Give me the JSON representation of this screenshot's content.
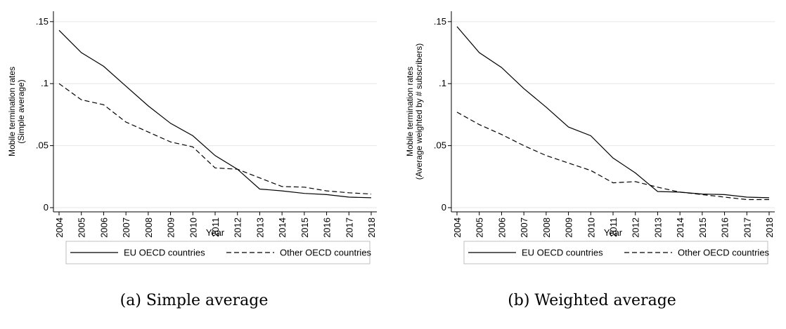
{
  "chart_data": [
    {
      "type": "line",
      "xlabel": "Year",
      "ylabel_lines": [
        "Mobile termination rates",
        "(Simple average)"
      ],
      "x": [
        2004,
        2005,
        2006,
        2007,
        2008,
        2009,
        2010,
        2011,
        2012,
        2013,
        2014,
        2015,
        2016,
        2017,
        2018
      ],
      "yticks": [
        0,
        0.05,
        0.1,
        0.15
      ],
      "ytick_labels": [
        "0",
        ".05",
        ".1",
        ".15"
      ],
      "ylim": [
        0,
        0.155
      ],
      "grid": true,
      "legend_placement": "bottom",
      "series": [
        {
          "name": "EU OECD countries",
          "style": "solid",
          "values": [
            0.143,
            0.125,
            0.114,
            0.098,
            0.082,
            0.068,
            0.058,
            0.042,
            0.031,
            0.015,
            0.0135,
            0.0115,
            0.0105,
            0.0085,
            0.008
          ]
        },
        {
          "name": "Other OECD countries",
          "style": "dashed",
          "values": [
            0.1,
            0.087,
            0.083,
            0.069,
            0.061,
            0.053,
            0.049,
            0.032,
            0.031,
            0.024,
            0.017,
            0.0165,
            0.0135,
            0.012,
            0.011
          ]
        }
      ]
    },
    {
      "type": "line",
      "xlabel": "Year",
      "ylabel_lines": [
        "Mobile termination rates",
        "(Average weighted by # subscribers)"
      ],
      "x": [
        2004,
        2005,
        2006,
        2007,
        2008,
        2009,
        2010,
        2011,
        2012,
        2013,
        2014,
        2015,
        2016,
        2017,
        2018
      ],
      "yticks": [
        0,
        0.05,
        0.1,
        0.15
      ],
      "ytick_labels": [
        "0",
        ".05",
        ".1",
        ".15"
      ],
      "ylim": [
        0,
        0.155
      ],
      "grid": true,
      "legend_placement": "bottom",
      "series": [
        {
          "name": "EU OECD countries",
          "style": "solid",
          "values": [
            0.146,
            0.125,
            0.113,
            0.096,
            0.081,
            0.065,
            0.058,
            0.04,
            0.028,
            0.013,
            0.0125,
            0.011,
            0.0105,
            0.0085,
            0.008
          ]
        },
        {
          "name": "Other OECD countries",
          "style": "dashed",
          "values": [
            0.077,
            0.067,
            0.059,
            0.05,
            0.042,
            0.036,
            0.03,
            0.02,
            0.021,
            0.0165,
            0.0125,
            0.0105,
            0.0085,
            0.0065,
            0.0065
          ]
        }
      ]
    }
  ],
  "captions": [
    "(a) Simple average",
    "(b) Weighted average"
  ]
}
